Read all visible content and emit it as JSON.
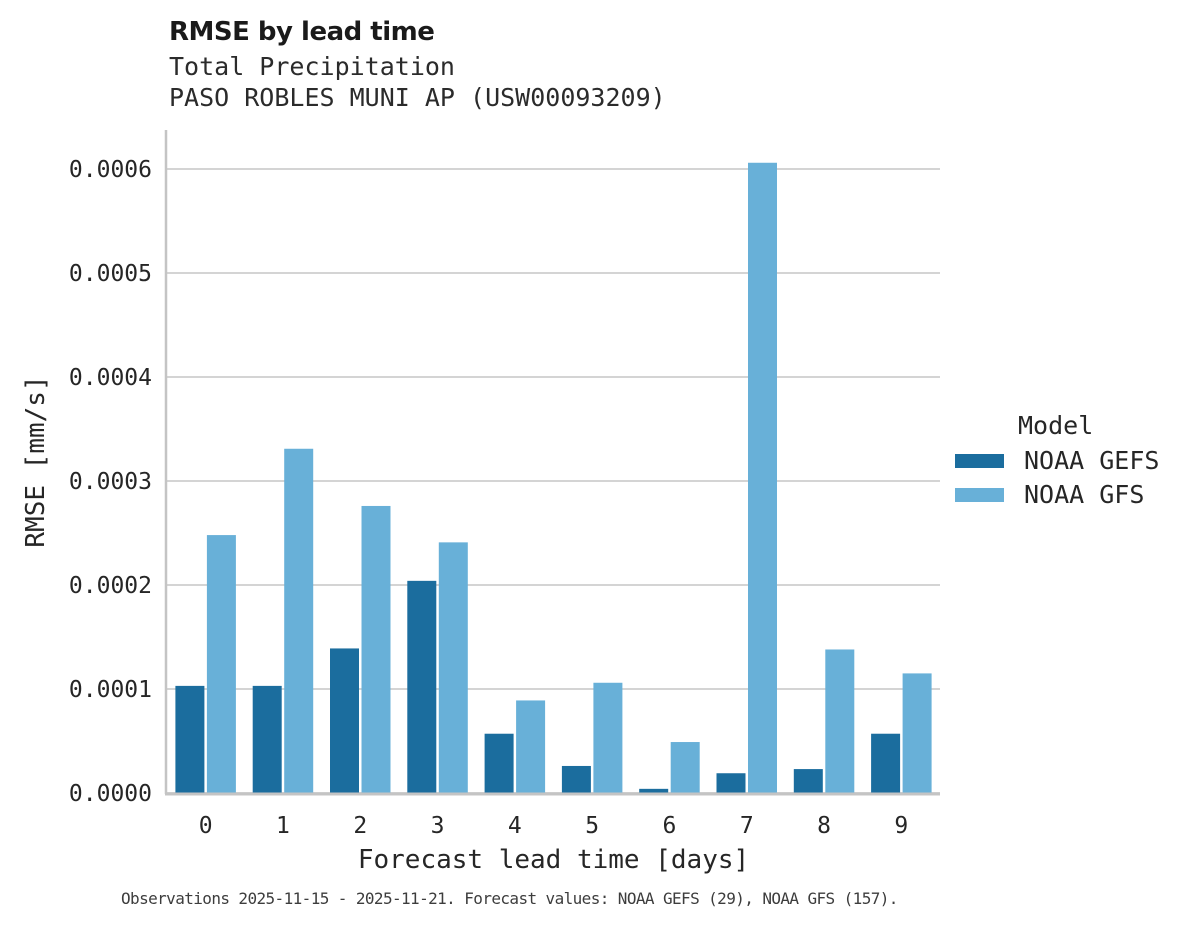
{
  "title": "RMSE by lead time",
  "subtitle1": "Total Precipitation",
  "subtitle2": "PASO ROBLES MUNI AP (USW00093209)",
  "caption": "Observations 2025-11-15 - 2025-11-21. Forecast values: NOAA GEFS (29), NOAA GFS (157).",
  "legend": {
    "title": "Model"
  },
  "chart_data": {
    "type": "bar",
    "title": "RMSE by lead time",
    "subtitle": [
      "Total Precipitation",
      "PASO ROBLES MUNI AP (USW00093209)"
    ],
    "xlabel": "Forecast lead time [days]",
    "ylabel": "RMSE [mm/s]",
    "categories": [
      "0",
      "1",
      "2",
      "3",
      "4",
      "5",
      "6",
      "7",
      "8",
      "9"
    ],
    "series": [
      {
        "name": "NOAA GEFS",
        "color": "#1b6d9e",
        "values": [
          0.000103,
          0.000103,
          0.000139,
          0.000204,
          5.7e-05,
          2.6e-05,
          4e-06,
          1.9e-05,
          2.3e-05,
          5.7e-05
        ]
      },
      {
        "name": "NOAA GFS",
        "color": "#68b0d8",
        "values": [
          0.000248,
          0.000331,
          0.000276,
          0.000241,
          8.9e-05,
          0.000106,
          4.9e-05,
          0.000606,
          0.000138,
          0.000115
        ]
      }
    ],
    "ylim": [
      0,
      0.0006375
    ],
    "yticks": [
      0,
      0.0001,
      0.0002,
      0.0003,
      0.0004,
      0.0005,
      0.0006
    ],
    "ytick_labels": [
      "0.0000",
      "0.0001",
      "0.0002",
      "0.0003",
      "0.0004",
      "0.0005",
      "0.0006"
    ],
    "legend_title": "Model",
    "legend_position": "right",
    "grid": "horizontal",
    "colors": {
      "grid": "#d4d4d4",
      "spine": "#c4c4c4",
      "text": "#262626"
    }
  }
}
